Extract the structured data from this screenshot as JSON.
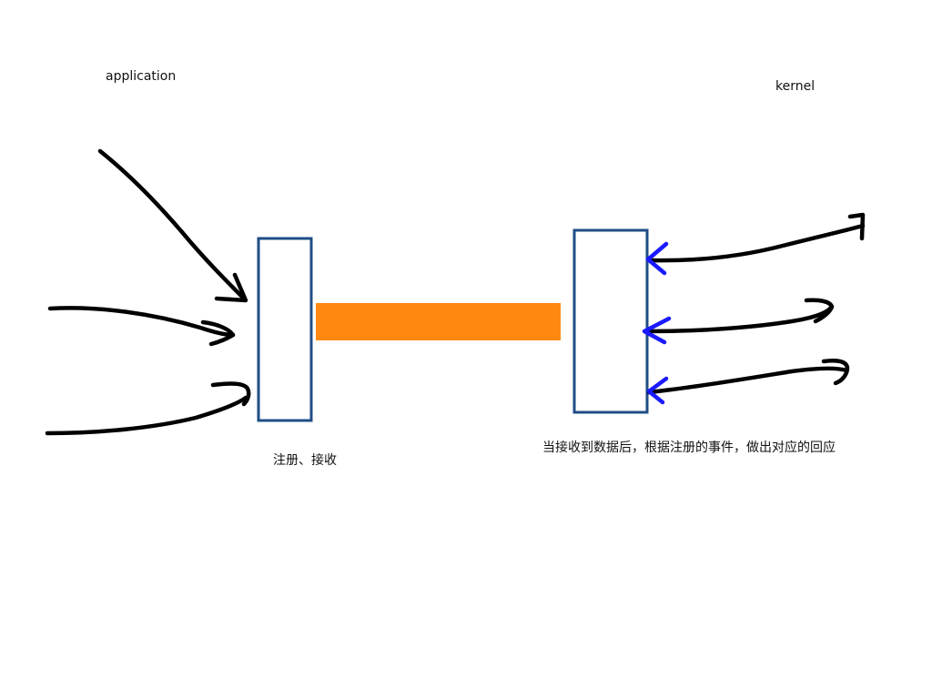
{
  "labels": {
    "application": "application",
    "kernel": "kernel",
    "register_receive": "注册、接收",
    "on_data_received": "当接收到数据后，根据注册的事件，做出对应的回应"
  },
  "colors": {
    "box_border": "#1f4e86",
    "connector": "#ff8811",
    "incoming_arrows": "#000000",
    "outgoing_arrowheads": "#1a1aff"
  },
  "elements": {
    "left_box": "registration-box",
    "right_box": "dispatch-box",
    "connector": "orange-connector-bar"
  }
}
